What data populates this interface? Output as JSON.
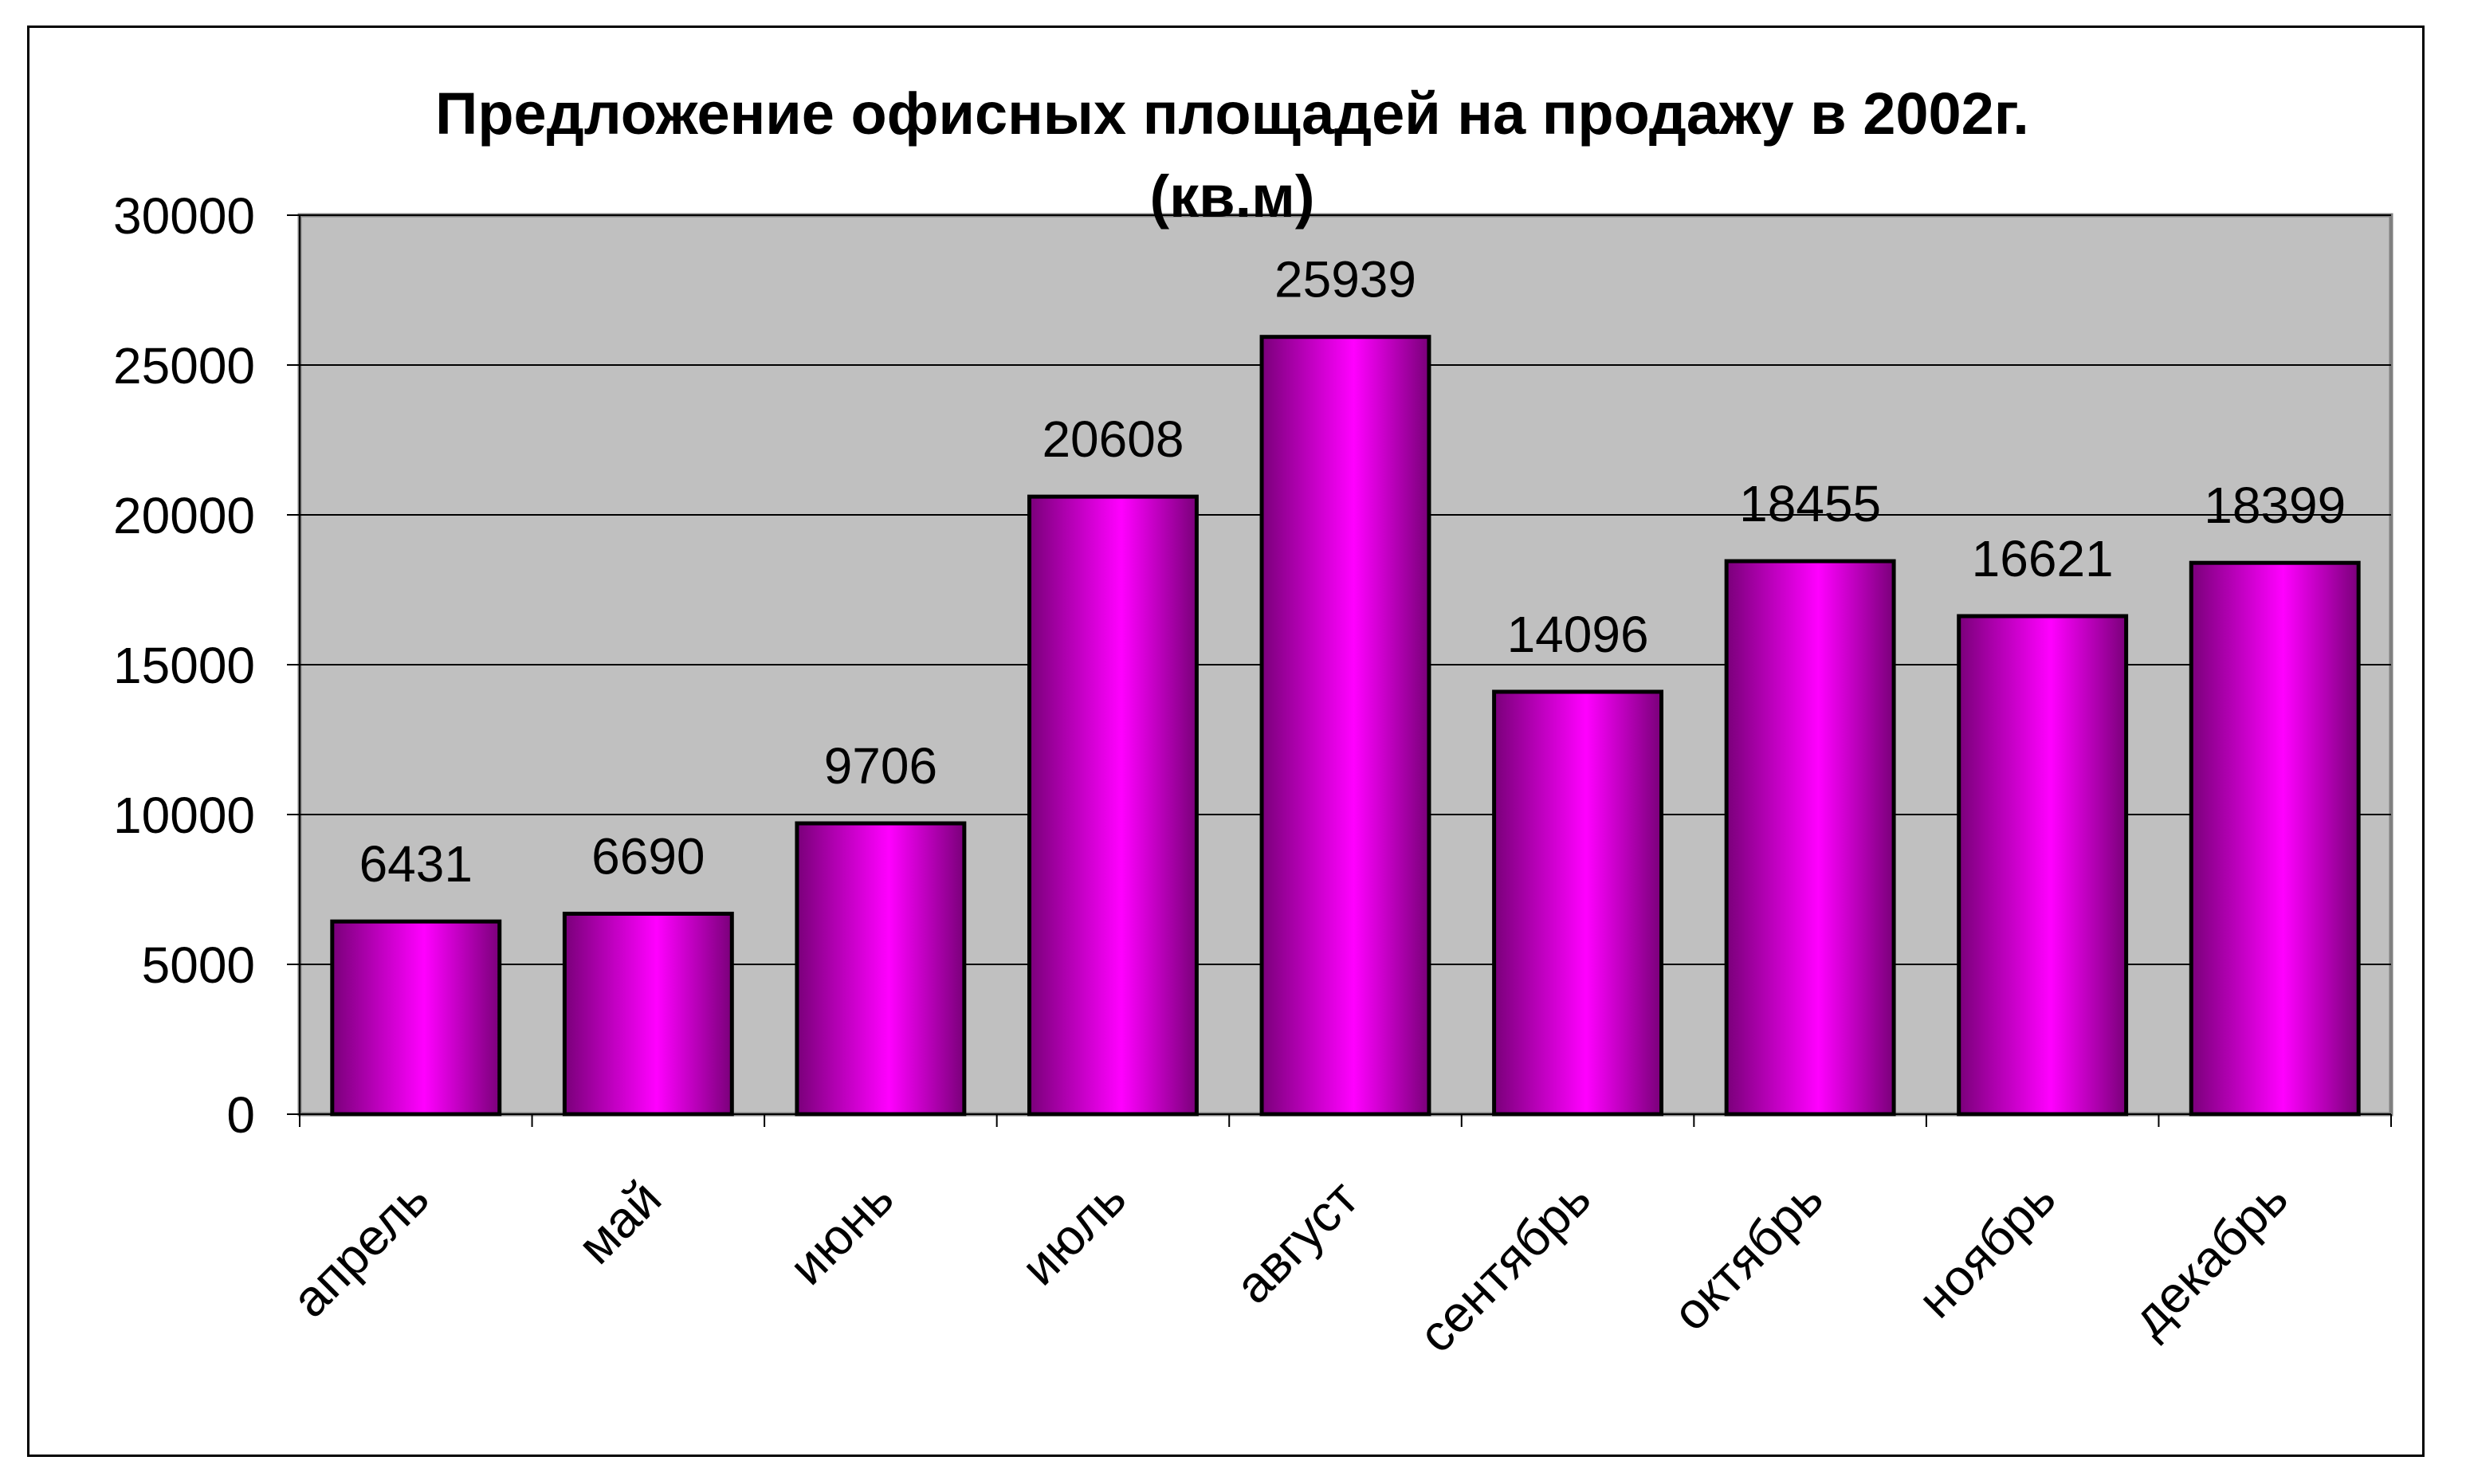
{
  "chart_data": {
    "type": "bar",
    "title_line1": "Предложение офисных площадей на продажу в 2002г.",
    "title_line2": "(кв.м)",
    "categories": [
      "апрель",
      "май",
      "июнь",
      "июль",
      "август",
      "сентябрь",
      "октябрь",
      "ноябрь",
      "декабрь"
    ],
    "values": [
      6431,
      6690,
      9706,
      20608,
      25939,
      14096,
      18455,
      16621,
      18399
    ],
    "ylim": [
      0,
      30000
    ],
    "yticks": [
      0,
      5000,
      10000,
      15000,
      20000,
      25000,
      30000
    ],
    "grid": true,
    "legend": "none",
    "colors": {
      "plot_background": "#c0c0c0",
      "bar_fill": "#ff00ff",
      "bar_dark": "#7a007a",
      "grid": "#000000"
    }
  }
}
